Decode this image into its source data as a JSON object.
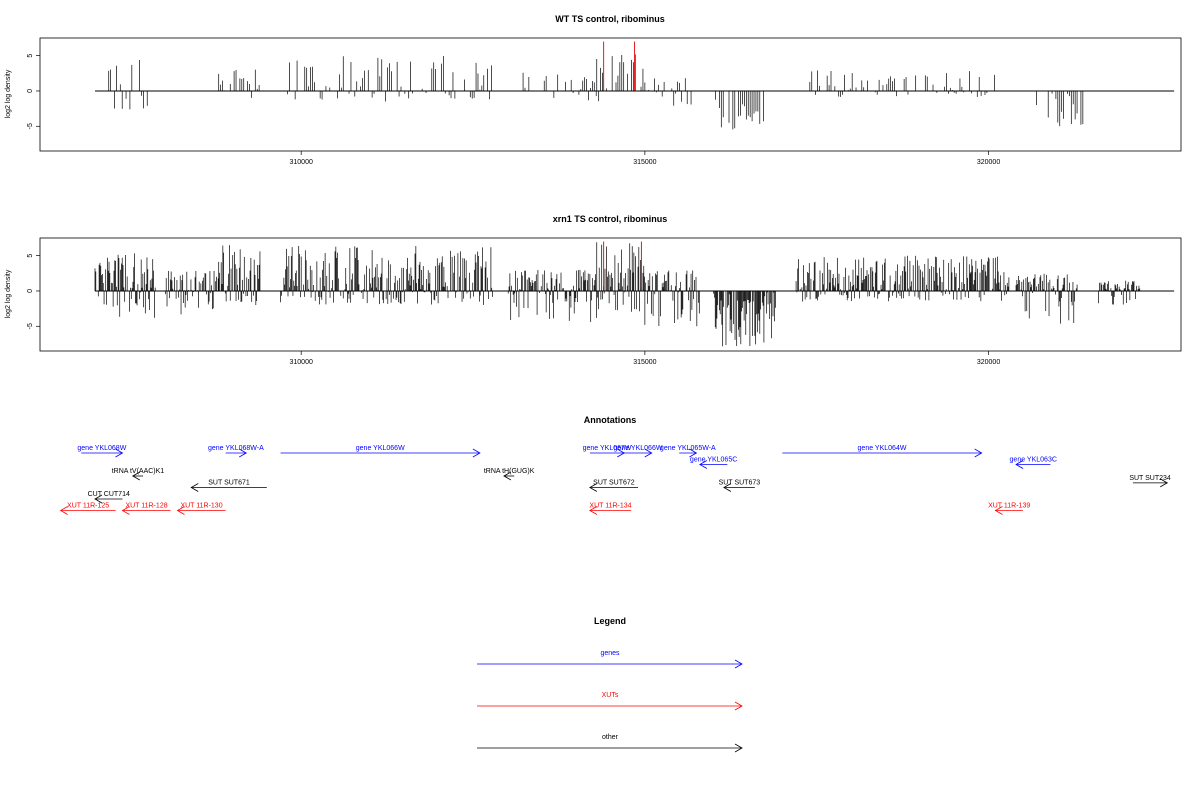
{
  "chart_data": [
    {
      "type": "bar",
      "title": "WT TS control, ribominus",
      "ylabel": "log2 log density",
      "xlim": [
        306200,
        322800
      ],
      "ylim": [
        -8.5,
        7.5
      ],
      "xticks": [
        310000,
        315000,
        320000
      ],
      "yticks": [
        -5,
        0,
        5
      ],
      "colors": {
        "bar": "#000000",
        "highlight": "#e41a1c"
      },
      "highlight_positions": [
        314400,
        314850
      ],
      "segments": [
        {
          "from": 307200,
          "to": 307800,
          "min": -3,
          "max": 4.5
        },
        {
          "from": 308800,
          "to": 309400,
          "min": -2,
          "max": 3.5
        },
        {
          "from": 309800,
          "to": 312800,
          "min": -1.5,
          "max": 5
        },
        {
          "from": 313200,
          "to": 314300,
          "min": -1.5,
          "max": 3
        },
        {
          "from": 314300,
          "to": 315000,
          "min": -1.5,
          "max": 5.5
        },
        {
          "from": 315000,
          "to": 315800,
          "min": -2.5,
          "max": 2
        },
        {
          "from": 316000,
          "to": 316800,
          "min": -5.5,
          "max": 1
        },
        {
          "from": 317400,
          "to": 320100,
          "min": -1,
          "max": 3
        },
        {
          "from": 320700,
          "to": 321400,
          "min": -5,
          "max": 1.5
        }
      ]
    },
    {
      "type": "bar",
      "title": "xrn1 TS control, ribominus",
      "ylabel": "log2 log density",
      "xlim": [
        306200,
        322800
      ],
      "ylim": [
        -8.5,
        7.5
      ],
      "xticks": [
        310000,
        315000,
        320000
      ],
      "yticks": [
        -5,
        0,
        5
      ],
      "colors": {
        "bar": "#000000",
        "highlight": "#e41a1c"
      },
      "highlight_positions": [
        314400,
        314950
      ],
      "segments": [
        {
          "from": 307000,
          "to": 307900,
          "min": -4,
          "max": 5.5
        },
        {
          "from": 308000,
          "to": 308800,
          "min": -3.5,
          "max": 3
        },
        {
          "from": 308800,
          "to": 309400,
          "min": -2,
          "max": 6.5
        },
        {
          "from": 309700,
          "to": 312800,
          "min": -2,
          "max": 6.5
        },
        {
          "from": 313000,
          "to": 314300,
          "min": -4.5,
          "max": 3
        },
        {
          "from": 314300,
          "to": 315000,
          "min": -3,
          "max": 7
        },
        {
          "from": 315000,
          "to": 315800,
          "min": -5,
          "max": 3
        },
        {
          "from": 316000,
          "to": 316900,
          "min": -8,
          "max": 1
        },
        {
          "from": 317200,
          "to": 320300,
          "min": -1.5,
          "max": 5
        },
        {
          "from": 320400,
          "to": 321300,
          "min": -5,
          "max": 2.5
        },
        {
          "from": 321600,
          "to": 322200,
          "min": -2,
          "max": 1.5
        }
      ]
    }
  ],
  "annotations": {
    "title": "Annotations",
    "colors": {
      "genes": "#0000ff",
      "xuts": "#ff0000",
      "other": "#000000"
    },
    "features": [
      {
        "label": "gene YKL068W",
        "kind": "genes",
        "start": 306800,
        "end": 307400,
        "row": 0
      },
      {
        "label": "gene YKL068W-A",
        "kind": "genes",
        "start": 308900,
        "end": 309200,
        "row": 0
      },
      {
        "label": "gene YKL066W",
        "kind": "genes",
        "start": 309700,
        "end": 312600,
        "row": 0
      },
      {
        "label": "gene YKL067W",
        "kind": "genes",
        "start": 314200,
        "end": 314700,
        "row": 0
      },
      {
        "label": "gene YKL066W",
        "kind": "genes",
        "start": 314700,
        "end": 315100,
        "row": 0
      },
      {
        "label": "gene YKL065W-A",
        "kind": "genes",
        "start": 315500,
        "end": 315750,
        "row": 0
      },
      {
        "label": "gene YKL065C",
        "kind": "genes",
        "start": 316200,
        "end": 315800,
        "row": 1
      },
      {
        "label": "gene YKL064W",
        "kind": "genes",
        "start": 317000,
        "end": 319900,
        "row": 0
      },
      {
        "label": "gene YKL063C",
        "kind": "genes",
        "start": 320900,
        "end": 320400,
        "row": 1
      },
      {
        "label": "tRNA tV(AAC)K1",
        "kind": "other",
        "start": 307700,
        "end": 307550,
        "row": 2
      },
      {
        "label": "tRNA tH(GUG)K",
        "kind": "other",
        "start": 313100,
        "end": 312950,
        "row": 2
      },
      {
        "label": "SUT SUT671",
        "kind": "other",
        "start": 309500,
        "end": 308400,
        "row": 3
      },
      {
        "label": "SUT SUT672",
        "kind": "other",
        "start": 314900,
        "end": 314200,
        "row": 3
      },
      {
        "label": "SUT SUT673",
        "kind": "other",
        "start": 316600,
        "end": 316150,
        "row": 3
      },
      {
        "label": "SUT SUT234",
        "kind": "other",
        "start": 322100,
        "end": 322600,
        "row": 2.6
      },
      {
        "label": "CUT CUT714",
        "kind": "other",
        "start": 307400,
        "end": 307000,
        "row": 4
      },
      {
        "label": "XUT 11R-125",
        "kind": "xuts",
        "start": 307300,
        "end": 306500,
        "row": 5
      },
      {
        "label": "XUT 11R-128",
        "kind": "xuts",
        "start": 308100,
        "end": 307400,
        "row": 5
      },
      {
        "label": "XUT 11R-130",
        "kind": "xuts",
        "start": 308900,
        "end": 308200,
        "row": 5
      },
      {
        "label": "XUT 11R-134",
        "kind": "xuts",
        "start": 314800,
        "end": 314200,
        "row": 5
      },
      {
        "label": "XUT 11R-139",
        "kind": "xuts",
        "start": 320500,
        "end": 320100,
        "row": 5
      }
    ]
  },
  "legend": {
    "title": "Legend",
    "items": [
      {
        "label": "genes",
        "kind": "genes"
      },
      {
        "label": "XUTs",
        "kind": "xuts"
      },
      {
        "label": "other",
        "kind": "other"
      }
    ]
  }
}
